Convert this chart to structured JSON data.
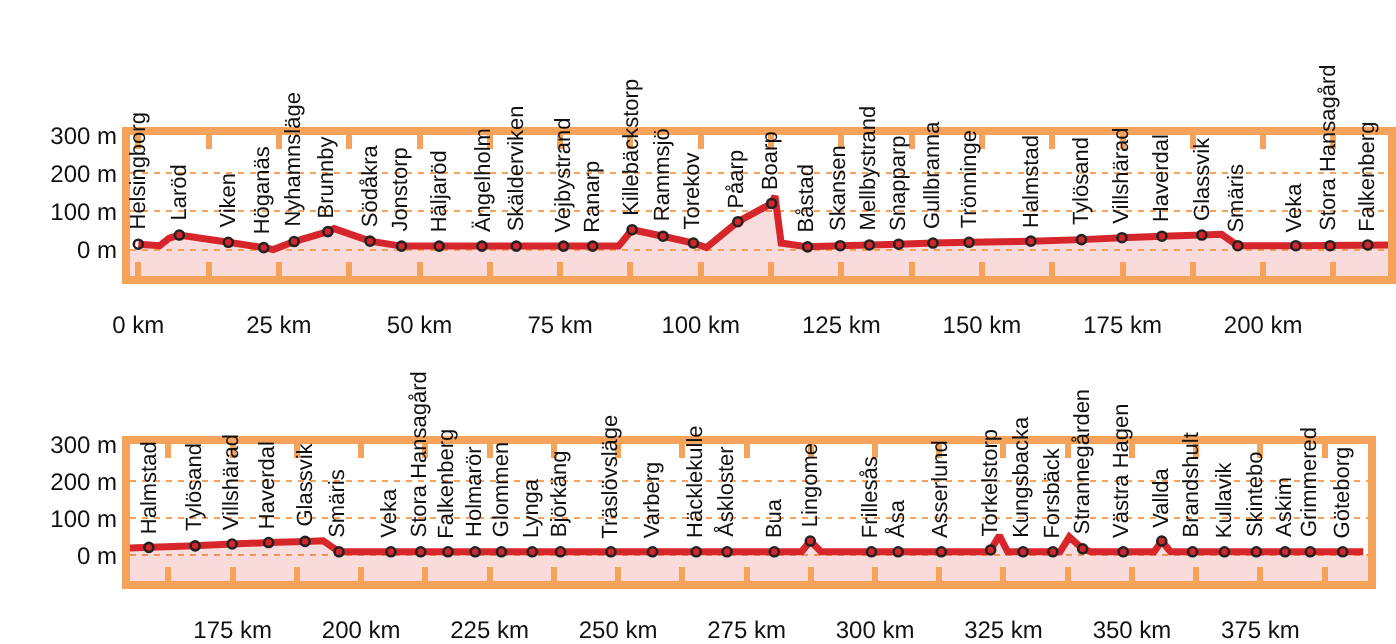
{
  "chart_data": [
    {
      "type": "area",
      "xlim": [
        -1.5,
        222.2
      ],
      "ylim": [
        -70,
        300
      ],
      "xticks": [
        {
          "value": 0,
          "label": "0 km"
        },
        {
          "value": 12.5,
          "label": null
        },
        {
          "value": 25,
          "label": "25 km"
        },
        {
          "value": 37.5,
          "label": null
        },
        {
          "value": 50,
          "label": "50 km"
        },
        {
          "value": 62.5,
          "label": null
        },
        {
          "value": 75,
          "label": "75 km"
        },
        {
          "value": 87.5,
          "label": null
        },
        {
          "value": 100,
          "label": "100 km"
        },
        {
          "value": 112.5,
          "label": null
        },
        {
          "value": 125,
          "label": "125 km"
        },
        {
          "value": 137.5,
          "label": null
        },
        {
          "value": 150,
          "label": "150 km"
        },
        {
          "value": 162.5,
          "label": null
        },
        {
          "value": 175,
          "label": "175 km"
        },
        {
          "value": 187.5,
          "label": null
        },
        {
          "value": 200,
          "label": "200 km"
        },
        {
          "value": 212.5,
          "label": null
        }
      ],
      "yticks": [
        {
          "value": 0,
          "label": "0 m"
        },
        {
          "value": 100,
          "label": "100 m"
        },
        {
          "value": 200,
          "label": "200 m"
        },
        {
          "value": 300,
          "label": "300 m"
        }
      ],
      "grid": "y",
      "bands": [
        {
          "axis": "y",
          "from": -70,
          "to": 0,
          "color": "#f9dbdc"
        }
      ],
      "series": [
        {
          "color": "#d7262b",
          "x": [
            0,
            3.8,
            5.5,
            7.3,
            16,
            22.3,
            24,
            27.7,
            33.7,
            34.8,
            41.2,
            46.8,
            85.4,
            87.8,
            93.3,
            98.7,
            101,
            106.6,
            112.6,
            113.2,
            114.3,
            119,
            124.8,
            130,
            135.2,
            141.3,
            147.7,
            158.7,
            167.7,
            174.9,
            182,
            189.1,
            192.6,
            195.5,
            205.8,
            222.2
          ],
          "values": [
            14,
            10,
            30,
            38,
            19,
            5,
            0,
            21,
            47,
            55,
            22,
            9,
            9,
            52,
            35,
            17,
            5,
            73,
            121,
            141,
            17,
            7,
            10,
            12,
            14,
            17,
            19,
            22,
            26,
            31,
            35,
            38,
            40,
            10,
            10,
            12
          ]
        },
        {
          "type": "scatter",
          "marker": "circle",
          "color": "#222222",
          "x": [
            0,
            7.3,
            16,
            22.3,
            27.7,
            33.7,
            41.2,
            46.8,
            53.5,
            61.1,
            67.2,
            75.6,
            80.8,
            87.8,
            93.3,
            98.7,
            106.6,
            112.6,
            119,
            124.8,
            130,
            135.2,
            141.3,
            147.7,
            158.7,
            167.7,
            174.9,
            182,
            189.1,
            195.5,
            205.8,
            211.9,
            218.6
          ],
          "values": [
            14,
            38,
            19,
            5,
            21,
            47,
            22,
            9,
            9,
            9,
            9,
            9,
            9,
            52,
            35,
            17,
            73,
            121,
            7,
            10,
            12,
            14,
            17,
            19,
            22,
            26,
            31,
            35,
            38,
            10,
            10,
            10,
            12
          ]
        }
      ],
      "annotations": [
        {
          "text": "Helsingborg",
          "x": 0,
          "y": 14
        },
        {
          "text": "Laröd",
          "x": 7.3,
          "y": 38
        },
        {
          "text": "Viken",
          "x": 16,
          "y": 19
        },
        {
          "text": "Höganäs",
          "x": 22.3,
          "y": 5
        },
        {
          "text": "Nyhamnsläge",
          "x": 27.7,
          "y": 21
        },
        {
          "text": "Brunnby",
          "x": 33.7,
          "y": 47
        },
        {
          "text": "Södåkra",
          "x": 41.2,
          "y": 22
        },
        {
          "text": "Jonstorp",
          "x": 46.8,
          "y": 9
        },
        {
          "text": "Häljaröd",
          "x": 53.5,
          "y": 9
        },
        {
          "text": "Ängelholm",
          "x": 61.1,
          "y": 9
        },
        {
          "text": "Skälderviken",
          "x": 67.2,
          "y": 9
        },
        {
          "text": "Vejbystrand",
          "x": 75.6,
          "y": 9
        },
        {
          "text": "Ranarp",
          "x": 80.8,
          "y": 9
        },
        {
          "text": "Killebäckstorp",
          "x": 87.8,
          "y": 52
        },
        {
          "text": "Rammsjö",
          "x": 93.3,
          "y": 35
        },
        {
          "text": "Torekov",
          "x": 98.7,
          "y": 17
        },
        {
          "text": "Påarp",
          "x": 106.6,
          "y": 73
        },
        {
          "text": "Boarp",
          "x": 112.6,
          "y": 121
        },
        {
          "text": "Båstad",
          "x": 119,
          "y": 7
        },
        {
          "text": "Skansen",
          "x": 124.8,
          "y": 10
        },
        {
          "text": "Mellbystrand",
          "x": 130,
          "y": 12
        },
        {
          "text": "Snapparp",
          "x": 135.2,
          "y": 14
        },
        {
          "text": "Gullbranna",
          "x": 141.3,
          "y": 17
        },
        {
          "text": "Trönninge",
          "x": 147.7,
          "y": 19
        },
        {
          "text": "Halmstad",
          "x": 158.7,
          "y": 22
        },
        {
          "text": "Tylösand",
          "x": 167.7,
          "y": 26
        },
        {
          "text": "Villshärad",
          "x": 174.9,
          "y": 31
        },
        {
          "text": "Haverdal",
          "x": 182,
          "y": 35
        },
        {
          "text": "Glassvik",
          "x": 189.1,
          "y": 38
        },
        {
          "text": "Smäris",
          "x": 195.5,
          "y": 10
        },
        {
          "text": "Veka",
          "x": 205.8,
          "y": 10
        },
        {
          "text": "Stora Hansagård",
          "x": 211.9,
          "y": 10
        },
        {
          "text": "Falkenberg",
          "x": 218.6,
          "y": 12
        }
      ]
    },
    {
      "type": "area",
      "xlim": [
        155,
        396
      ],
      "ylim": [
        -70,
        300
      ],
      "xticks": [
        {
          "value": 162.5,
          "label": null
        },
        {
          "value": 175,
          "label": "175 km"
        },
        {
          "value": 187.5,
          "label": null
        },
        {
          "value": 200,
          "label": "200 km"
        },
        {
          "value": 212.5,
          "label": null
        },
        {
          "value": 225,
          "label": "225 km"
        },
        {
          "value": 237.5,
          "label": null
        },
        {
          "value": 250,
          "label": "250 km"
        },
        {
          "value": 262.5,
          "label": null
        },
        {
          "value": 275,
          "label": "275 km"
        },
        {
          "value": 287.5,
          "label": null
        },
        {
          "value": 300,
          "label": "300 km"
        },
        {
          "value": 312.5,
          "label": null
        },
        {
          "value": 325,
          "label": "325 km"
        },
        {
          "value": 337.5,
          "label": null
        },
        {
          "value": 350,
          "label": "350 km"
        },
        {
          "value": 362.5,
          "label": null
        },
        {
          "value": 375,
          "label": "375 km"
        },
        {
          "value": 387.5,
          "label": null
        }
      ],
      "yticks": [
        {
          "value": 0,
          "label": "0 m"
        },
        {
          "value": 100,
          "label": "100 m"
        },
        {
          "value": 200,
          "label": "200 m"
        },
        {
          "value": 300,
          "label": "300 m"
        }
      ],
      "grid": "y",
      "bands": [
        {
          "axis": "y",
          "from": -70,
          "to": 0,
          "color": "#f9dbdc"
        }
      ],
      "series": [
        {
          "color": "#d7262b",
          "x": [
            155,
            167.7,
            174.9,
            182,
            189.1,
            192.6,
            195.7,
            285.7,
            287.4,
            289.5,
            321.5,
            322.5,
            324.2,
            325.8,
            336,
            337.8,
            340.4,
            342,
            354.3,
            355.8,
            357.5,
            395
          ],
          "values": [
            20,
            26,
            31,
            35,
            38,
            40,
            10,
            10,
            39,
            10,
            10,
            15,
            54,
            10,
            10,
            50,
            18,
            10,
            10,
            39,
            10,
            10
          ]
        },
        {
          "type": "scatter",
          "marker": "circle",
          "color": "#222222",
          "x": [
            158.7,
            167.7,
            174.9,
            182,
            189.1,
            195.7,
            205.8,
            211.6,
            216.9,
            222.2,
            227.3,
            233.3,
            238.8,
            248.6,
            256.7,
            265.2,
            271.2,
            280.4,
            287.4,
            299.3,
            304.5,
            312.9,
            322.5,
            328.8,
            334.6,
            340.4,
            348.3,
            355.8,
            361.8,
            368,
            374.2,
            379.8,
            384.7,
            391
          ],
          "values": [
            22,
            26,
            31,
            35,
            38,
            10,
            10,
            10,
            10,
            10,
            10,
            10,
            10,
            10,
            10,
            10,
            10,
            10,
            39,
            10,
            10,
            10,
            15,
            10,
            10,
            18,
            10,
            39,
            10,
            10,
            10,
            10,
            10,
            10
          ]
        }
      ],
      "annotations": [
        {
          "text": "Halmstad",
          "x": 158.7,
          "y": 22
        },
        {
          "text": "Tylösand",
          "x": 167.7,
          "y": 26
        },
        {
          "text": "Villshärad",
          "x": 174.9,
          "y": 31
        },
        {
          "text": "Haverdal",
          "x": 182,
          "y": 35
        },
        {
          "text": "Glassvik",
          "x": 189.1,
          "y": 38
        },
        {
          "text": "Smäris",
          "x": 195.7,
          "y": 10
        },
        {
          "text": "Veka",
          "x": 205.8,
          "y": 10
        },
        {
          "text": "Stora Hansagård",
          "x": 211.6,
          "y": 10
        },
        {
          "text": "Falkenberg",
          "x": 216.9,
          "y": 10
        },
        {
          "text": "Holmarör",
          "x": 222.2,
          "y": 10
        },
        {
          "text": "Glommen",
          "x": 227.3,
          "y": 10
        },
        {
          "text": "Lynga",
          "x": 233.3,
          "y": 10
        },
        {
          "text": "Björkäng",
          "x": 238.8,
          "y": 10
        },
        {
          "text": "Träslövsläge",
          "x": 248.6,
          "y": 10
        },
        {
          "text": "Varberg",
          "x": 256.7,
          "y": 10
        },
        {
          "text": "Häcklekulle",
          "x": 265.2,
          "y": 10
        },
        {
          "text": "Åskloster",
          "x": 271.2,
          "y": 10
        },
        {
          "text": "Bua",
          "x": 280.4,
          "y": 10
        },
        {
          "text": "Lingome",
          "x": 287.4,
          "y": 39
        },
        {
          "text": "Frillesås",
          "x": 299.3,
          "y": 10
        },
        {
          "text": "Åsa",
          "x": 304.5,
          "y": 10
        },
        {
          "text": "Asserlund",
          "x": 312.9,
          "y": 10
        },
        {
          "text": "Torkelstorp",
          "x": 322.5,
          "y": 15
        },
        {
          "text": "Kungsbacka",
          "x": 328.8,
          "y": 10
        },
        {
          "text": "Forsbäck",
          "x": 334.6,
          "y": 10
        },
        {
          "text": "Strannegården",
          "x": 340.4,
          "y": 18
        },
        {
          "text": "Västra Hagen",
          "x": 348.3,
          "y": 10
        },
        {
          "text": "Vallda",
          "x": 355.8,
          "y": 39
        },
        {
          "text": "Brandshult",
          "x": 361.8,
          "y": 10
        },
        {
          "text": "Kullavik",
          "x": 368,
          "y": 10
        },
        {
          "text": "Skintebo",
          "x": 374.2,
          "y": 10
        },
        {
          "text": "Askim",
          "x": 379.8,
          "y": 10
        },
        {
          "text": "Grimmered",
          "x": 384.7,
          "y": 10
        },
        {
          "text": "Göteborg",
          "x": 391,
          "y": 10
        }
      ]
    }
  ]
}
